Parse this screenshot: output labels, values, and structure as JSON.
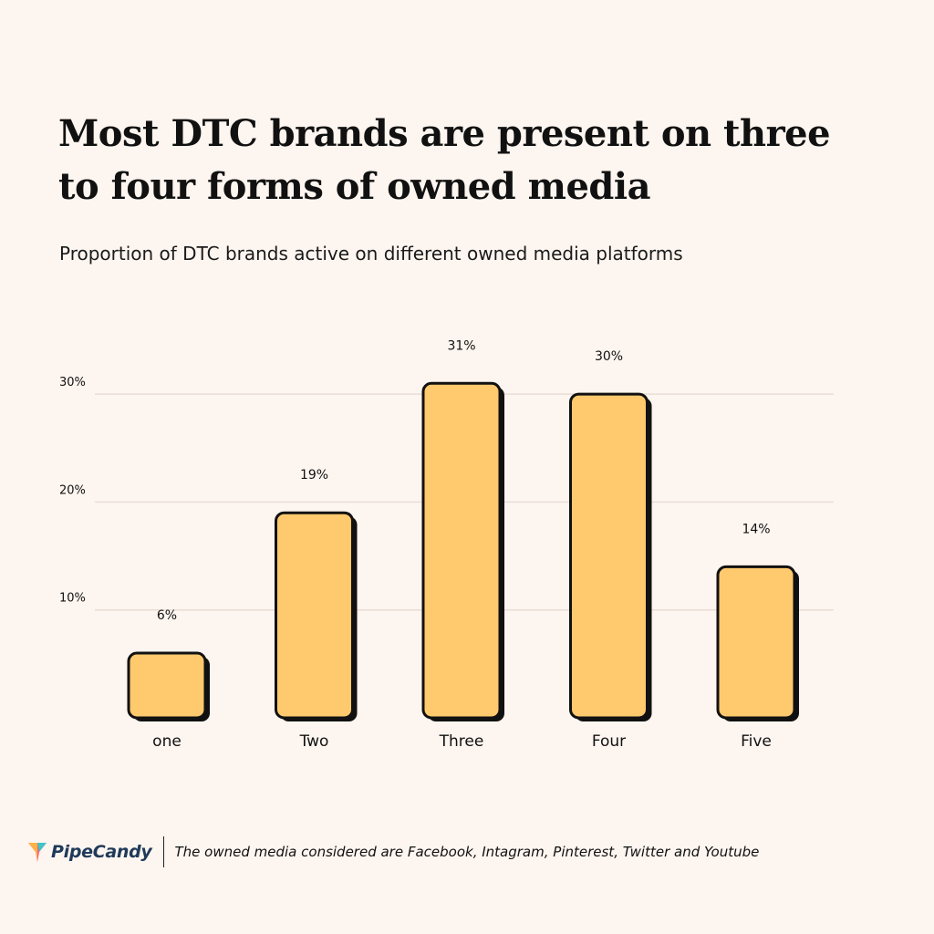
{
  "title": "Most DTC brands are present on three to four forms of owned media",
  "subtitle": "Proportion of DTC brands active on different owned media platforms",
  "footer": {
    "brand": "PipeCandy",
    "note": "The owned media considered are Facebook, Intagram, Pinterest, Twitter and Youtube"
  },
  "colors": {
    "background": "#fdf5ef",
    "bar_fill": "#ffc96e",
    "bar_outline": "#111111",
    "grid": "#e9ddd6"
  },
  "chart_data": {
    "type": "bar",
    "categories": [
      "one",
      "Two",
      "Three",
      "Four",
      "Five"
    ],
    "values": [
      6,
      19,
      31,
      30,
      14
    ],
    "value_labels": [
      "6%",
      "19%",
      "31%",
      "30%",
      "14%"
    ],
    "yticks": [
      10,
      20,
      30
    ],
    "ytick_labels": [
      "10%",
      "20%",
      "30%"
    ],
    "ylim": [
      0,
      30
    ],
    "grid": true,
    "legend": "none"
  }
}
